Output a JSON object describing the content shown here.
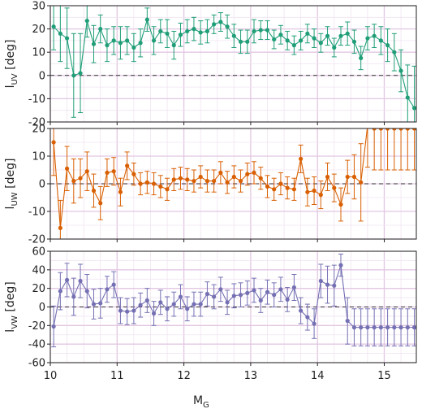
{
  "chart_data": {
    "type": "line",
    "shared_x": {
      "label_main": "M",
      "label_sub": "G",
      "xlim": [
        10.0,
        15.48
      ],
      "ticks": [
        10,
        11,
        12,
        13,
        14,
        15
      ],
      "tick_labels": [
        "10",
        "11",
        "12",
        "13",
        "14",
        "15"
      ],
      "x": [
        10.05,
        10.15,
        10.25,
        10.35,
        10.45,
        10.55,
        10.65,
        10.75,
        10.85,
        10.95,
        11.05,
        11.15,
        11.25,
        11.35,
        11.45,
        11.55,
        11.65,
        11.75,
        11.85,
        11.95,
        12.05,
        12.15,
        12.25,
        12.35,
        12.45,
        12.55,
        12.65,
        12.75,
        12.85,
        12.95,
        13.05,
        13.15,
        13.25,
        13.35,
        13.45,
        13.55,
        13.65,
        13.75,
        13.85,
        13.95,
        14.05,
        14.15,
        14.25,
        14.35,
        14.45,
        14.55,
        14.65,
        14.75,
        14.85,
        14.95,
        15.05,
        15.15,
        15.25,
        15.35,
        15.45
      ]
    },
    "panels": [
      {
        "ylabel_main": "l",
        "ylabel_sub": "UV",
        "ylabel_unit": " [deg]",
        "ylim": [
          -20,
          30
        ],
        "ticks": [
          -20,
          -10,
          0,
          10,
          20,
          30
        ],
        "tick_labels": [
          "-20",
          "-10",
          "0",
          "10",
          "20",
          "30"
        ],
        "color": "#1f9e77",
        "values": [
          21,
          18,
          16,
          0,
          1,
          23.5,
          13.5,
          20,
          13,
          15,
          14,
          15,
          12,
          14,
          24,
          15,
          19,
          18,
          13,
          17.5,
          19,
          20,
          18.5,
          19,
          22,
          23,
          21,
          17,
          14.5,
          14.5,
          19,
          19.5,
          19.5,
          15.5,
          17.5,
          15,
          13,
          15,
          18,
          16,
          14,
          17,
          12,
          17,
          18,
          14.5,
          7.5,
          16,
          17,
          15,
          13,
          10,
          2,
          -9.5,
          -14
        ],
        "errors": [
          10,
          12,
          13,
          18,
          17,
          7,
          8,
          6,
          7,
          6,
          7,
          6,
          6,
          6,
          5,
          6,
          5,
          6,
          6,
          5,
          5,
          5,
          5,
          5,
          4,
          4,
          5,
          5,
          5,
          5,
          5,
          4,
          4,
          4,
          4,
          4,
          4,
          4,
          4,
          4,
          4,
          4,
          4,
          4,
          5,
          5,
          5,
          5,
          5,
          6,
          7,
          8,
          9,
          14,
          18
        ]
      },
      {
        "ylabel_main": "l",
        "ylabel_sub": "UW",
        "ylabel_unit": " [deg]",
        "ylim": [
          -20,
          20
        ],
        "ticks": [
          -20,
          -10,
          0,
          10,
          20
        ],
        "tick_labels": [
          "-20",
          "-10",
          "0",
          "10",
          "20"
        ],
        "color": "#d95f02",
        "values": [
          15,
          -16,
          5.5,
          1,
          2,
          4.5,
          -2.5,
          -7,
          4,
          4.5,
          -3,
          6.5,
          3.5,
          0,
          0.5,
          0,
          -1,
          -2,
          1.5,
          2,
          1.5,
          1,
          2.5,
          1,
          1,
          4,
          0.5,
          2.5,
          1,
          3.5,
          4,
          2,
          -1,
          -2,
          0,
          -1.5,
          -2,
          9,
          -3,
          -2.5,
          -4,
          2.5,
          -1.5,
          -7.5,
          2.5,
          2.5,
          0.5,
          21,
          20,
          20,
          20,
          20,
          20,
          20,
          20
        ],
        "errors": [
          12,
          10,
          8,
          8,
          7,
          7,
          6,
          6,
          5,
          5,
          5,
          5,
          4,
          4,
          4,
          4,
          4,
          4,
          4,
          4,
          4,
          4,
          4,
          4,
          4,
          4,
          4,
          4,
          4,
          4,
          4,
          4,
          4,
          4,
          4,
          4,
          4,
          5,
          5,
          5,
          5,
          5,
          5,
          6,
          6,
          8,
          14,
          15,
          15,
          15,
          15,
          15,
          15,
          15,
          15
        ]
      },
      {
        "ylabel_main": "l",
        "ylabel_sub": "VW",
        "ylabel_unit": " [deg]",
        "ylim": [
          -60,
          60
        ],
        "ticks": [
          -60,
          -40,
          -20,
          0,
          20,
          40,
          60
        ],
        "tick_labels": [
          "-60",
          "-40",
          "-20",
          "0",
          "20",
          "40",
          "60"
        ],
        "color": "#7570b3",
        "values": [
          -21,
          17,
          29,
          11,
          28,
          17,
          3,
          4,
          19,
          24,
          -4,
          -5,
          -4,
          2,
          7,
          -7,
          5,
          -2,
          3,
          11,
          -2,
          3,
          3,
          14,
          11,
          19,
          5,
          12,
          13,
          15,
          18,
          7,
          16,
          13,
          19,
          8,
          21,
          -4,
          -11,
          -18,
          28,
          24,
          23,
          45,
          -15,
          -22,
          -22,
          -22,
          -22,
          -22,
          -22,
          -22,
          -22,
          -22,
          -22
        ],
        "errors": [
          22,
          20,
          18,
          20,
          18,
          18,
          16,
          16,
          14,
          14,
          14,
          14,
          14,
          13,
          13,
          13,
          13,
          13,
          13,
          13,
          13,
          13,
          13,
          13,
          13,
          13,
          13,
          13,
          13,
          13,
          13,
          13,
          13,
          13,
          13,
          13,
          14,
          14,
          14,
          16,
          18,
          20,
          22,
          12,
          25,
          20,
          20,
          20,
          20,
          20,
          20,
          20,
          20,
          20,
          20
        ]
      }
    ]
  }
}
